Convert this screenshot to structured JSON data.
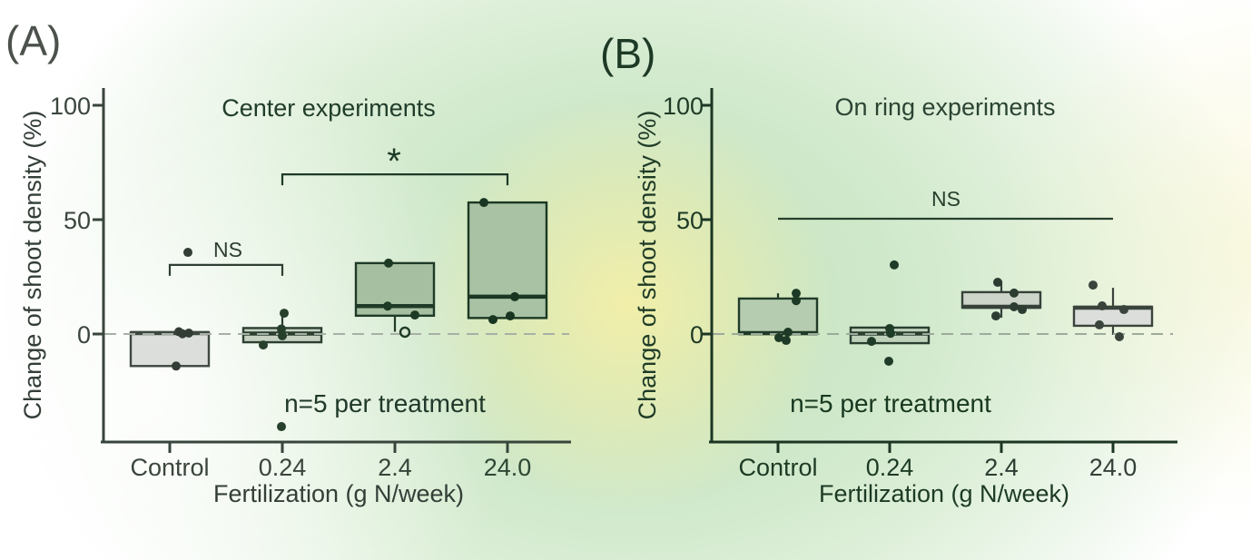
{
  "palette": {
    "background_green": "#c3e2bd",
    "background_yellow": "#f6f0a8",
    "background_white": "#ffffff",
    "zero_dash_a": "#a6b0a6",
    "zero_dash_b": "#9cab9c",
    "axis_a": "#38453c",
    "axis_b": "#1c3623"
  },
  "chart_data": [
    {
      "type": "boxplot",
      "panel": "A",
      "panel_label": "(A)",
      "title": "Center experiments",
      "xlabel": "Fertilization (g N/week)",
      "ylabel": "Change of shoot density (%)",
      "note": "n=5 per treatment",
      "categories": [
        "Control",
        "0.24",
        "2.4",
        "24.0"
      ],
      "yticks": [
        {
          "label": "100",
          "value": 100
        },
        {
          "label": "50",
          "value": 50
        },
        {
          "label": "0",
          "value": 0
        }
      ],
      "ylim": [
        -46,
        108
      ],
      "zero_line": true,
      "boxes": [
        {
          "category": "Control",
          "q1": -14,
          "median": 0.4,
          "q3": 0.8,
          "whisker_low": null,
          "whisker_high": null,
          "fill": "#dcdedb",
          "stroke": "#3e4840",
          "point_color": "#333d36",
          "points": [
            {
              "v": 35.7,
              "dx": 20
            },
            {
              "v": 1,
              "dx": 10
            },
            {
              "v": 0.4,
              "dx": 21
            },
            {
              "v": 0.1,
              "dx": 14
            },
            {
              "v": -14,
              "dx": 7
            }
          ]
        },
        {
          "category": "0.24",
          "q1": -3.6,
          "median": 0.2,
          "q3": 2.6,
          "whisker_low": null,
          "whisker_high": 8.3,
          "fill": "#c6d1c2",
          "stroke": "#2a3f30",
          "point_color": "#26402c",
          "points": [
            {
              "v": 9.1,
              "dx": 2
            },
            {
              "v": 2.2,
              "dx": -1
            },
            {
              "v": -0.8,
              "dx": 0
            },
            {
              "v": -4.8,
              "dx": -21
            },
            {
              "v": -40.5,
              "dx": -1
            }
          ]
        },
        {
          "category": "2.4",
          "q1": 8,
          "median": 12.2,
          "q3": 31,
          "whisker_low": 1,
          "whisker_high": null,
          "fill": "#a5bfa0",
          "stroke": "#1f3a27",
          "point_color": "#1d3a25",
          "points": [
            {
              "v": 31,
              "dx": -7
            },
            {
              "v": 12.2,
              "dx": -8
            },
            {
              "v": 8.3,
              "dx": 22
            },
            {
              "v": 0.8,
              "dx": 11,
              "open": true
            }
          ]
        },
        {
          "category": "24.0",
          "q1": 7,
          "median": 16.3,
          "q3": 57.5,
          "whisker_low": null,
          "whisker_high": null,
          "fill": "#a9c2a4",
          "stroke": "#1b3822",
          "point_color": "#173520",
          "points": [
            {
              "v": 57.5,
              "dx": -26
            },
            {
              "v": 16.3,
              "dx": 8
            },
            {
              "v": 7.9,
              "dx": 3
            },
            {
              "v": 6.3,
              "dx": -16
            }
          ]
        }
      ],
      "significance": [
        {
          "label": "NS",
          "from": 0,
          "to": 1,
          "y_pct": 30.2,
          "end_ticks": true,
          "color": "#2f3e33"
        },
        {
          "label": "*",
          "from": 1,
          "to": 3,
          "y_pct": 69.8,
          "end_ticks": true,
          "color": "#1d3a27"
        }
      ]
    },
    {
      "type": "boxplot",
      "panel": "B",
      "panel_label": "(B)",
      "title": "On ring experiments",
      "xlabel": "Fertilization (g N/week)",
      "ylabel": "Change of shoot density (%)",
      "note": "n=5 per treatment",
      "categories": [
        "Control",
        "0.24",
        "2.4",
        "24.0"
      ],
      "yticks": [
        {
          "label": "100",
          "value": 100
        },
        {
          "label": "50",
          "value": 50
        },
        {
          "label": "0",
          "value": 0
        }
      ],
      "ylim": [
        -46,
        108
      ],
      "zero_line": true,
      "boxes": [
        {
          "category": "Control",
          "q1": 0,
          "median": 0.4,
          "q3": 15.5,
          "whisker_low": null,
          "whisker_high": 17.8,
          "fill": "#b6ccb0",
          "stroke": "#203b28",
          "point_color": "#1d3a26",
          "points": [
            {
              "v": 17.8,
              "dx": 20
            },
            {
              "v": 14.6,
              "dx": 20
            },
            {
              "v": 0.8,
              "dx": 11
            },
            {
              "v": -1.6,
              "dx": 1
            },
            {
              "v": -2.8,
              "dx": 9
            }
          ]
        },
        {
          "category": "0.24",
          "q1": -4,
          "median": 0.2,
          "q3": 2.8,
          "whisker_low": null,
          "whisker_high": null,
          "fill": "#bfd1ba",
          "stroke": "#2a3f30",
          "point_color": "#1f3c28",
          "points": [
            {
              "v": 30.2,
              "dx": 5
            },
            {
              "v": 2.4,
              "dx": 0
            },
            {
              "v": 0.3,
              "dx": 1
            },
            {
              "v": -3.2,
              "dx": -20
            },
            {
              "v": -11.9,
              "dx": -1
            }
          ]
        },
        {
          "category": "2.4",
          "q1": 11.5,
          "median": 11.9,
          "q3": 18.3,
          "whisker_low": 7.1,
          "whisker_high": 23.2,
          "fill": "#cdd4c9",
          "stroke": "#36413a",
          "point_color": "#2c3c31",
          "points": [
            {
              "v": 22.6,
              "dx": -4
            },
            {
              "v": 17.9,
              "dx": 14
            },
            {
              "v": 11.9,
              "dx": 14
            },
            {
              "v": 10.7,
              "dx": 23
            },
            {
              "v": 7.9,
              "dx": -6
            }
          ]
        },
        {
          "category": "24.0",
          "q1": 3.6,
          "median": 11.5,
          "q3": 11.9,
          "whisker_low": -0.4,
          "whisker_high": 20.2,
          "fill": "#dbdeda",
          "stroke": "#3a433c",
          "point_color": "#3a433c",
          "points": [
            {
              "v": 21.4,
              "dx": -22
            },
            {
              "v": 12.3,
              "dx": -12
            },
            {
              "v": 10.7,
              "dx": 12
            },
            {
              "v": 4,
              "dx": -15
            },
            {
              "v": -1.2,
              "dx": 7
            }
          ]
        }
      ],
      "significance": [
        {
          "label": "NS",
          "from": 0,
          "to": 3,
          "y_pct": 50.4,
          "end_ticks": false,
          "color": "#26402d"
        }
      ]
    }
  ]
}
